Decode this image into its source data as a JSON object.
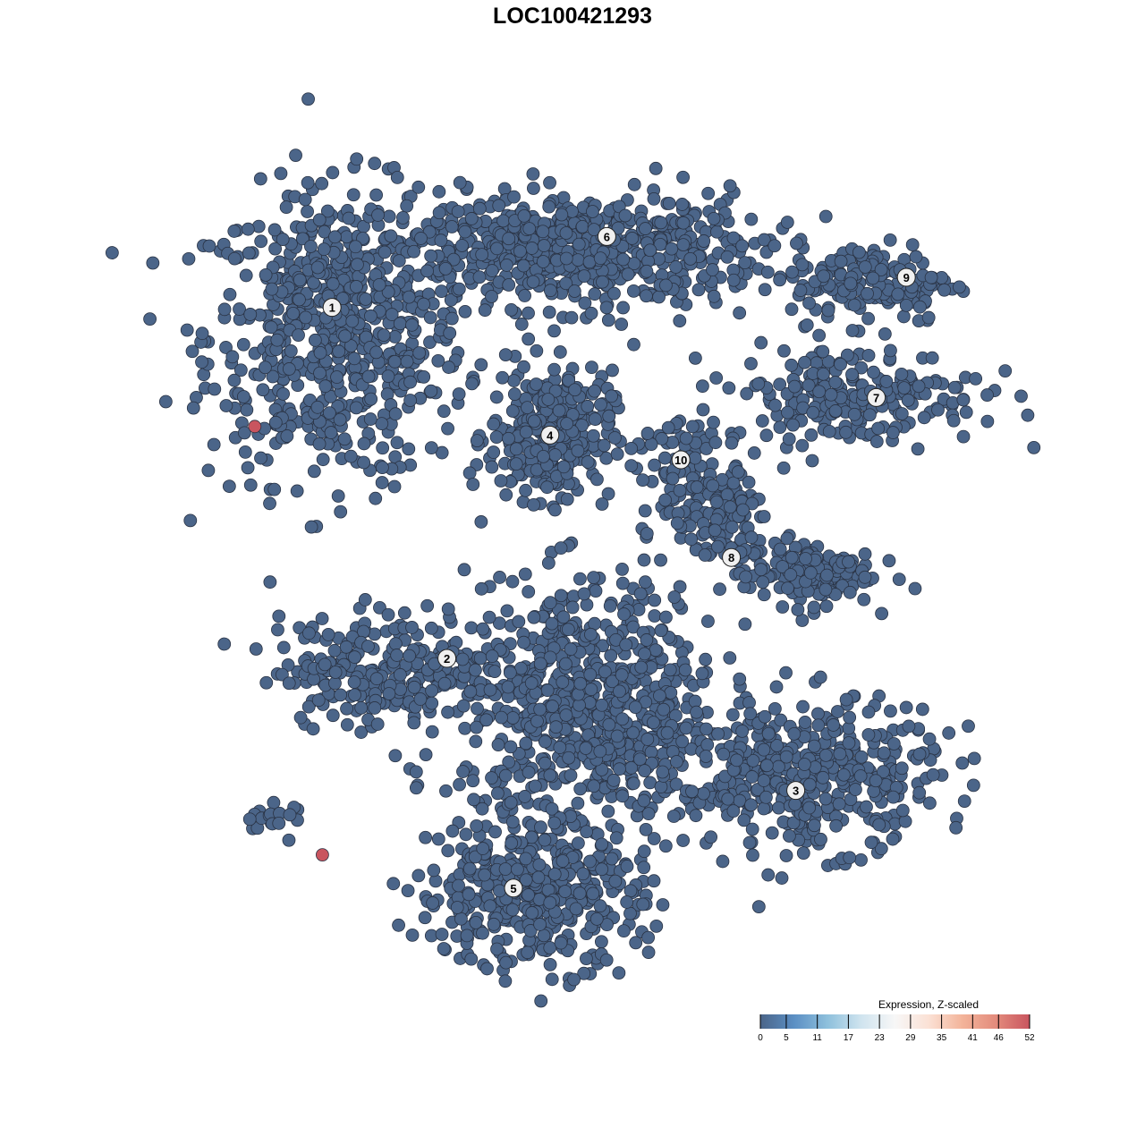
{
  "chart_data": {
    "type": "scatter",
    "title": "LOC100421293",
    "xlabel": "",
    "ylabel": "",
    "grid": false,
    "axes_visible": false,
    "point_color_default": "#4b6589",
    "clusters": [
      {
        "label": "1",
        "x": -22.4,
        "y": 24.7
      },
      {
        "label": "2",
        "x": -11.7,
        "y": -8.0
      },
      {
        "label": "3",
        "x": 20.8,
        "y": -20.3
      },
      {
        "label": "4",
        "x": -2.1,
        "y": 12.8
      },
      {
        "label": "5",
        "x": -5.5,
        "y": -29.4
      },
      {
        "label": "6",
        "x": 3.2,
        "y": 31.3
      },
      {
        "label": "7",
        "x": 28.3,
        "y": 16.3
      },
      {
        "label": "8",
        "x": 14.8,
        "y": 1.4
      },
      {
        "label": "9",
        "x": 31.1,
        "y": 27.5
      },
      {
        "label": "10",
        "x": 10.1,
        "y": 10.5
      }
    ],
    "high_expression_points": [
      {
        "x": -29.6,
        "y": 13.6,
        "value": 52
      },
      {
        "x": -23.3,
        "y": -26.3,
        "value": 52
      }
    ],
    "baseline_value": 0,
    "legend": {
      "title": "Expression, Z-scaled",
      "placement": "bottom-right",
      "ticks": [
        "0",
        "5",
        "11",
        "17",
        "23",
        "29",
        "35",
        "41",
        "46",
        "52"
      ],
      "range": [
        0,
        52
      ],
      "colors": [
        "#4b6589",
        "#5b8fc4",
        "#8ec0dc",
        "#d0e4ef",
        "#f7f7f7",
        "#fbe1d5",
        "#f3b49a",
        "#e38b7c",
        "#c9555f"
      ]
    }
  }
}
